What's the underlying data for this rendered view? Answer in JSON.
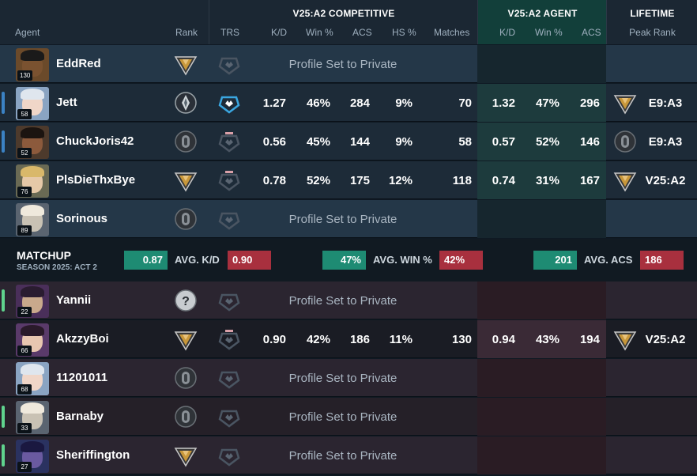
{
  "header": {
    "agent": "Agent",
    "rank": "Rank",
    "trs": "TRS",
    "competitive_title": "V25:A2 COMPETITIVE",
    "comp_cols": [
      "K/D",
      "Win %",
      "ACS",
      "HS %",
      "Matches"
    ],
    "agent_title": "V25:A2 AGENT",
    "agent_cols": [
      "K/D",
      "Win %",
      "ACS"
    ],
    "lifetime_title": "LIFETIME",
    "peak_rank": "Peak Rank"
  },
  "colors": {
    "team_a_marker": "#3b82c4",
    "team_b_marker": "#5fd38d",
    "gold": "#c8973a",
    "silver": "#9aa3a8",
    "green_pill": "#1e8b73",
    "red_pill": "#a8303e"
  },
  "team_a": [
    {
      "name": "EddRed",
      "level": "130",
      "marker": false,
      "private": "Profile Set to Private",
      "rank_icon": "gold-rank-icon",
      "trs_icon": "trs-empty-icon",
      "face": "#7a5230",
      "hair": "#1a1a1a",
      "bg": "#6b4a2a"
    },
    {
      "name": "Jett",
      "level": "58",
      "marker": true,
      "rank_icon": "silver-rank-icon",
      "trs_icon": "trs-blue-icon",
      "face": "#f0d6c8",
      "hair": "#dfe6ee",
      "bg": "#8aa4c2",
      "kd": "1.27",
      "win": "46%",
      "acs": "284",
      "hs": "9%",
      "matches": "70",
      "a_kd": "1.32",
      "a_win": "47%",
      "a_acs": "296",
      "peak": "E9:A3",
      "peak_icon": "gold-rank-icon"
    },
    {
      "name": "ChuckJoris42",
      "level": "52",
      "marker": true,
      "rank_icon": "iron-rank-icon",
      "trs_icon": "trs-pink-icon",
      "face": "#8c5a3c",
      "hair": "#1b1410",
      "bg": "#4d3a2c",
      "kd": "0.56",
      "win": "45%",
      "acs": "144",
      "hs": "9%",
      "matches": "58",
      "a_kd": "0.57",
      "a_win": "52%",
      "a_acs": "146",
      "peak": "E9:A3",
      "peak_icon": "iron-rank-icon"
    },
    {
      "name": "PlsDieThxBye",
      "level": "76",
      "marker": false,
      "rank_icon": "gold-rank-icon",
      "trs_icon": "trs-pink-icon",
      "face": "#e6c9a8",
      "hair": "#d9b86a",
      "bg": "#6a6a54",
      "kd": "0.78",
      "win": "52%",
      "acs": "175",
      "hs": "12%",
      "matches": "118",
      "a_kd": "0.74",
      "a_win": "31%",
      "a_acs": "167",
      "peak": "V25:A2",
      "peak_icon": "gold-rank-icon"
    },
    {
      "name": "Sorinous",
      "level": "89",
      "marker": false,
      "private": "Profile Set to Private",
      "rank_icon": "iron-rank-icon",
      "trs_icon": "trs-empty-icon",
      "face": "#c9c2b4",
      "hair": "#efe9dc",
      "bg": "#5a6470"
    }
  ],
  "matchup": {
    "title": "MATCHUP",
    "season": "SEASON 2025: ACT 2",
    "kd_a": "0.87",
    "kd_label": "AVG. K/D",
    "kd_b": "0.90",
    "win_a": "47%",
    "win_label": "AVG. WIN %",
    "win_b": "42%",
    "acs_a": "201",
    "acs_label": "AVG. ACS",
    "acs_b": "186"
  },
  "team_b": [
    {
      "name": "Yannii",
      "level": "22",
      "marker": true,
      "private": "Profile Set to Private",
      "rank_icon": "unknown-rank-icon",
      "trs_icon": "trs-empty-icon",
      "face": "#c9a98c",
      "hair": "#2a1c30",
      "bg": "#4a2f5a"
    },
    {
      "name": "AkzzyBoi",
      "level": "66",
      "marker": false,
      "rank_icon": "gold-rank-icon",
      "trs_icon": "trs-pink-icon",
      "face": "#e8c6b0",
      "hair": "#2a1a2a",
      "bg": "#5a3a6a",
      "kd": "0.90",
      "win": "42%",
      "acs": "186",
      "hs": "11%",
      "matches": "130",
      "a_kd": "0.94",
      "a_win": "43%",
      "a_acs": "194",
      "peak": "V25:A2",
      "peak_icon": "gold-rank-icon"
    },
    {
      "name": "11201011",
      "level": "68",
      "marker": false,
      "private": "Profile Set to Private",
      "rank_icon": "iron-rank-icon",
      "trs_icon": "trs-empty-icon",
      "face": "#f0d6c8",
      "hair": "#dfe6ee",
      "bg": "#8aa4c2"
    },
    {
      "name": "Barnaby",
      "level": "33",
      "marker": true,
      "private": "Profile Set to Private",
      "rank_icon": "iron-rank-icon",
      "trs_icon": "trs-empty-icon",
      "face": "#c9c2b4",
      "hair": "#efe9dc",
      "bg": "#5a6470"
    },
    {
      "name": "Sheriffington",
      "level": "27",
      "marker": true,
      "private": "Profile Set to Private",
      "rank_icon": "gold-rank-icon",
      "trs_icon": "trs-empty-icon",
      "face": "#6a5aa0",
      "hair": "#1a1840",
      "bg": "#2a3260"
    }
  ]
}
